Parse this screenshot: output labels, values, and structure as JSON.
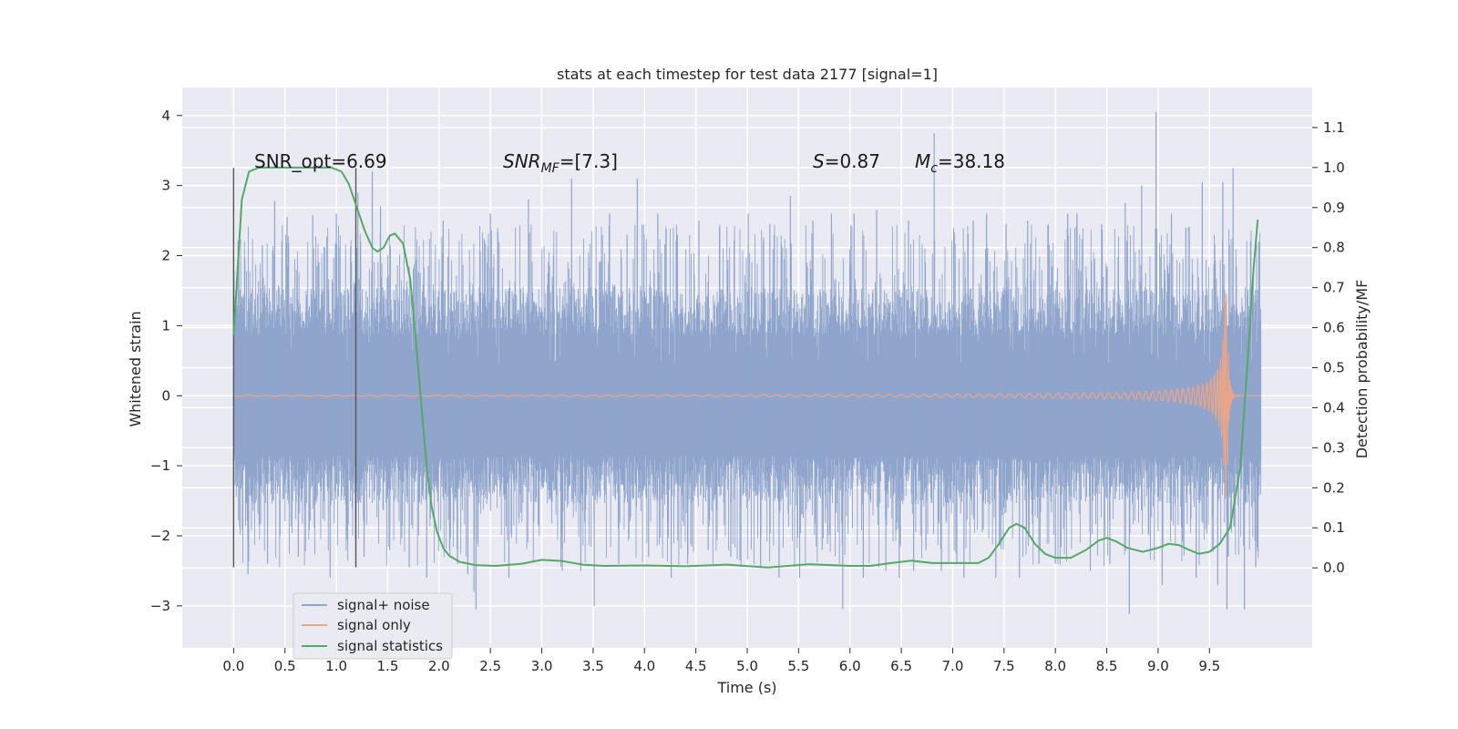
{
  "chart_data": {
    "type": "line",
    "title": "stats at each timestep for test data 2177 [signal=1]",
    "xlabel": "Time (s)",
    "ylabel": "Whitened strain",
    "y2label": "Detection probability/MF",
    "xlim": [
      -0.5,
      10.5
    ],
    "ylim": [
      -3.6,
      4.4
    ],
    "y2lim": [
      -0.2,
      1.2
    ],
    "xticks": [
      "0.0",
      "0.5",
      "1.0",
      "1.5",
      "2.0",
      "2.5",
      "3.0",
      "3.5",
      "4.0",
      "4.5",
      "5.0",
      "5.5",
      "6.0",
      "6.5",
      "7.0",
      "7.5",
      "8.0",
      "8.5",
      "9.0",
      "9.5"
    ],
    "yticks": [
      "−3",
      "−2",
      "−1",
      "0",
      "1",
      "2",
      "3",
      "4"
    ],
    "y2ticks": [
      "0.0",
      "0.1",
      "0.2",
      "0.3",
      "0.4",
      "0.5",
      "0.6",
      "0.7",
      "0.8",
      "0.9",
      "1.0",
      "1.1"
    ],
    "grid": true,
    "legend_placement": "lower-left",
    "annotations": {
      "snr_opt": "SNR_opt=6.69",
      "snr_mf_prefix": "SNR",
      "snr_mf_sub": "MF",
      "snr_mf_suffix": "=[7.3]",
      "s_prefix": "S",
      "s_suffix": "=0.87",
      "mc_prefix": "M",
      "mc_sub": "c",
      "mc_suffix": "=38.18"
    },
    "vlines": [
      {
        "x": 0.0,
        "ymin": -2.45,
        "ymax": 3.25
      },
      {
        "x": 1.19,
        "ymin": -2.45,
        "ymax": 3.25
      }
    ],
    "series": [
      {
        "name": "signal+ noise",
        "color": "#8fa5cc",
        "axis": "left",
        "t_range": [
          0.0,
          10.0
        ],
        "envelope": 1.55,
        "peaks": [
          [
            0.05,
            2.2
          ],
          [
            0.14,
            -2.55
          ],
          [
            0.28,
            2.15
          ],
          [
            0.33,
            -2.4
          ],
          [
            0.4,
            2.78
          ],
          [
            0.52,
            2.55
          ],
          [
            0.63,
            -2.3
          ],
          [
            0.77,
            2.58
          ],
          [
            0.94,
            -2.6
          ],
          [
            1.0,
            2.6
          ],
          [
            1.21,
            2.9
          ],
          [
            1.27,
            -2.3
          ],
          [
            1.35,
            3.2
          ],
          [
            1.43,
            2.7
          ],
          [
            1.52,
            -2.2
          ],
          [
            1.71,
            -2.45
          ],
          [
            1.88,
            -2.6
          ],
          [
            2.04,
            2.5
          ],
          [
            2.18,
            -2.4
          ],
          [
            2.28,
            -2.55
          ],
          [
            2.34,
            -2.8
          ],
          [
            2.36,
            -3.05
          ],
          [
            2.5,
            2.6
          ],
          [
            2.68,
            -2.6
          ],
          [
            2.87,
            2.8
          ],
          [
            3.2,
            -2.5
          ],
          [
            3.29,
            3.1
          ],
          [
            3.38,
            -2.5
          ],
          [
            3.51,
            -3.0
          ],
          [
            3.66,
            2.6
          ],
          [
            3.75,
            -2.4
          ],
          [
            3.83,
            2.3
          ],
          [
            3.93,
            3.1
          ],
          [
            4.04,
            -2.3
          ],
          [
            4.13,
            2.6
          ],
          [
            4.26,
            -2.6
          ],
          [
            4.32,
            2.3
          ],
          [
            4.42,
            -2.4
          ],
          [
            4.53,
            2.5
          ],
          [
            4.62,
            -2.2
          ],
          [
            4.73,
            2.4
          ],
          [
            4.84,
            -2.3
          ],
          [
            4.93,
            -2.35
          ],
          [
            5.01,
            2.6
          ],
          [
            5.13,
            -2.45
          ],
          [
            5.22,
            2.45
          ],
          [
            5.31,
            -2.6
          ],
          [
            5.42,
            2.85
          ],
          [
            5.51,
            -2.6
          ],
          [
            5.64,
            2.5
          ],
          [
            5.73,
            -2.2
          ],
          [
            5.82,
            2.6
          ],
          [
            5.93,
            -3.05
          ],
          [
            6.04,
            2.6
          ],
          [
            6.13,
            -2.6
          ],
          [
            6.26,
            2.65
          ],
          [
            6.35,
            -2.5
          ],
          [
            6.48,
            -2.6
          ],
          [
            6.57,
            2.5
          ],
          [
            6.62,
            -2.5
          ],
          [
            6.74,
            -2.2
          ],
          [
            6.82,
            3.75
          ],
          [
            6.89,
            -2.5
          ],
          [
            7.04,
            -2.4
          ],
          [
            7.11,
            -2.6
          ],
          [
            7.2,
            2.5
          ],
          [
            7.33,
            2.6
          ],
          [
            7.42,
            -2.6
          ],
          [
            7.52,
            2.45
          ],
          [
            7.65,
            -2.6
          ],
          [
            7.73,
            2.5
          ],
          [
            7.84,
            -2.4
          ],
          [
            7.93,
            2.45
          ],
          [
            8.0,
            -2.4
          ],
          [
            8.12,
            2.6
          ],
          [
            8.21,
            2.6
          ],
          [
            8.34,
            -2.5
          ],
          [
            8.45,
            2.45
          ],
          [
            8.53,
            -2.4
          ],
          [
            8.68,
            2.75
          ],
          [
            8.72,
            -3.12
          ],
          [
            8.84,
            3.0
          ],
          [
            8.98,
            4.05
          ],
          [
            9.04,
            -2.7
          ],
          [
            9.13,
            2.6
          ],
          [
            9.27,
            2.4
          ],
          [
            9.37,
            -2.6
          ],
          [
            9.43,
            3.05
          ],
          [
            9.58,
            -2.7
          ],
          [
            9.63,
            3.05
          ],
          [
            9.67,
            -3.05
          ],
          [
            9.73,
            3.25
          ],
          [
            9.84,
            -3.05
          ],
          [
            9.9,
            2.2
          ],
          [
            9.95,
            -2.45
          ],
          [
            9.98,
            2.2
          ]
        ]
      },
      {
        "name": "signal only",
        "color": "#e8a58a",
        "axis": "left",
        "t_range": [
          0.0,
          10.0
        ],
        "chirp_peak_time": 9.67,
        "chirp_max_amplitude": 1.45,
        "chirp_min_amplitude": -1.45
      },
      {
        "name": "signal statistics",
        "color": "#55a868",
        "axis": "right",
        "points": [
          [
            0.0,
            0.58
          ],
          [
            0.04,
            0.75
          ],
          [
            0.08,
            0.92
          ],
          [
            0.15,
            0.99
          ],
          [
            0.25,
            1.0
          ],
          [
            0.5,
            1.0
          ],
          [
            0.8,
            1.0
          ],
          [
            0.95,
            1.0
          ],
          [
            1.05,
            0.99
          ],
          [
            1.12,
            0.96
          ],
          [
            1.2,
            0.9
          ],
          [
            1.28,
            0.84
          ],
          [
            1.35,
            0.8
          ],
          [
            1.4,
            0.79
          ],
          [
            1.46,
            0.8
          ],
          [
            1.52,
            0.83
          ],
          [
            1.57,
            0.835
          ],
          [
            1.65,
            0.81
          ],
          [
            1.72,
            0.72
          ],
          [
            1.78,
            0.55
          ],
          [
            1.83,
            0.4
          ],
          [
            1.88,
            0.25
          ],
          [
            1.93,
            0.15
          ],
          [
            1.98,
            0.09
          ],
          [
            2.04,
            0.05
          ],
          [
            2.1,
            0.03
          ],
          [
            2.2,
            0.015
          ],
          [
            2.35,
            0.007
          ],
          [
            2.55,
            0.005
          ],
          [
            2.8,
            0.01
          ],
          [
            3.0,
            0.02
          ],
          [
            3.2,
            0.017
          ],
          [
            3.4,
            0.008
          ],
          [
            3.6,
            0.005
          ],
          [
            4.0,
            0.006
          ],
          [
            4.4,
            0.004
          ],
          [
            4.8,
            0.008
          ],
          [
            5.2,
            0.001
          ],
          [
            5.6,
            0.009
          ],
          [
            6.0,
            0.005
          ],
          [
            6.2,
            0.005
          ],
          [
            6.4,
            0.012
          ],
          [
            6.6,
            0.018
          ],
          [
            6.8,
            0.012
          ],
          [
            7.0,
            0.012
          ],
          [
            7.25,
            0.012
          ],
          [
            7.35,
            0.025
          ],
          [
            7.45,
            0.06
          ],
          [
            7.55,
            0.1
          ],
          [
            7.62,
            0.11
          ],
          [
            7.7,
            0.1
          ],
          [
            7.8,
            0.06
          ],
          [
            7.9,
            0.035
          ],
          [
            8.0,
            0.025
          ],
          [
            8.15,
            0.025
          ],
          [
            8.3,
            0.045
          ],
          [
            8.42,
            0.068
          ],
          [
            8.5,
            0.075
          ],
          [
            8.6,
            0.065
          ],
          [
            8.7,
            0.05
          ],
          [
            8.85,
            0.04
          ],
          [
            9.0,
            0.05
          ],
          [
            9.1,
            0.06
          ],
          [
            9.2,
            0.057
          ],
          [
            9.3,
            0.045
          ],
          [
            9.4,
            0.035
          ],
          [
            9.5,
            0.04
          ],
          [
            9.6,
            0.06
          ],
          [
            9.7,
            0.1
          ],
          [
            9.8,
            0.25
          ],
          [
            9.88,
            0.55
          ],
          [
            9.93,
            0.75
          ],
          [
            9.97,
            0.87
          ]
        ]
      }
    ]
  }
}
